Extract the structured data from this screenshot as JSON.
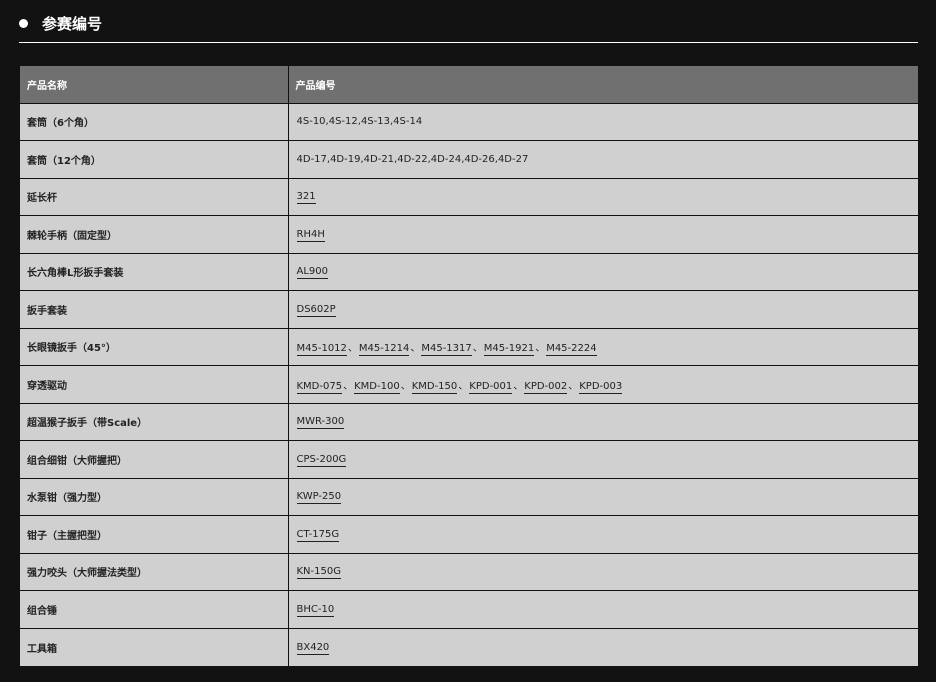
{
  "section": {
    "title": "参赛编号"
  },
  "table": {
    "headers": [
      "产品名称",
      "产品编号"
    ],
    "rows": [
      {
        "name": "套筒（6个角）",
        "codes": [
          "4S-10,4S-12,4S-13,4S-14"
        ],
        "linked": false
      },
      {
        "name": "套筒（12个角）",
        "codes": [
          "4D-17,4D-19,4D-21,4D-22,4D-24,4D-26,4D-27"
        ],
        "linked": false
      },
      {
        "name": "延长杆",
        "codes": [
          "321"
        ],
        "linked": true
      },
      {
        "name": "棘轮手柄（固定型）",
        "codes": [
          "RH4H"
        ],
        "linked": true
      },
      {
        "name": "长六角棒L形扳手套装",
        "codes": [
          "AL900"
        ],
        "linked": true
      },
      {
        "name": "扳手套装",
        "codes": [
          "DS602P"
        ],
        "linked": true
      },
      {
        "name": "长眼镜扳手（45°）",
        "codes": [
          "M45-1012",
          "M45-1214",
          "M45-1317",
          "M45-1921",
          "M45-2224"
        ],
        "linked": true
      },
      {
        "name": "穿透驱动",
        "codes": [
          "KMD-075",
          "KMD-100",
          "KMD-150",
          "KPD-001",
          "KPD-002",
          "KPD-003"
        ],
        "linked": true
      },
      {
        "name": "超温猴子扳手（带Scale）",
        "codes": [
          "MWR-300"
        ],
        "linked": true
      },
      {
        "name": "组合细钳（大师握把）",
        "codes": [
          "CPS-200G"
        ],
        "linked": true
      },
      {
        "name": "水泵钳（强力型）",
        "codes": [
          "KWP-250"
        ],
        "linked": true
      },
      {
        "name": "钳子（主握把型）",
        "codes": [
          "CT-175G"
        ],
        "linked": true
      },
      {
        "name": "强力咬头（大师握法类型）",
        "codes": [
          "KN-150G"
        ],
        "linked": true
      },
      {
        "name": "组合锤",
        "codes": [
          "BHC-10"
        ],
        "linked": true
      },
      {
        "name": "工具箱",
        "codes": [
          "BX420"
        ],
        "linked": true
      }
    ],
    "separator": "、"
  }
}
